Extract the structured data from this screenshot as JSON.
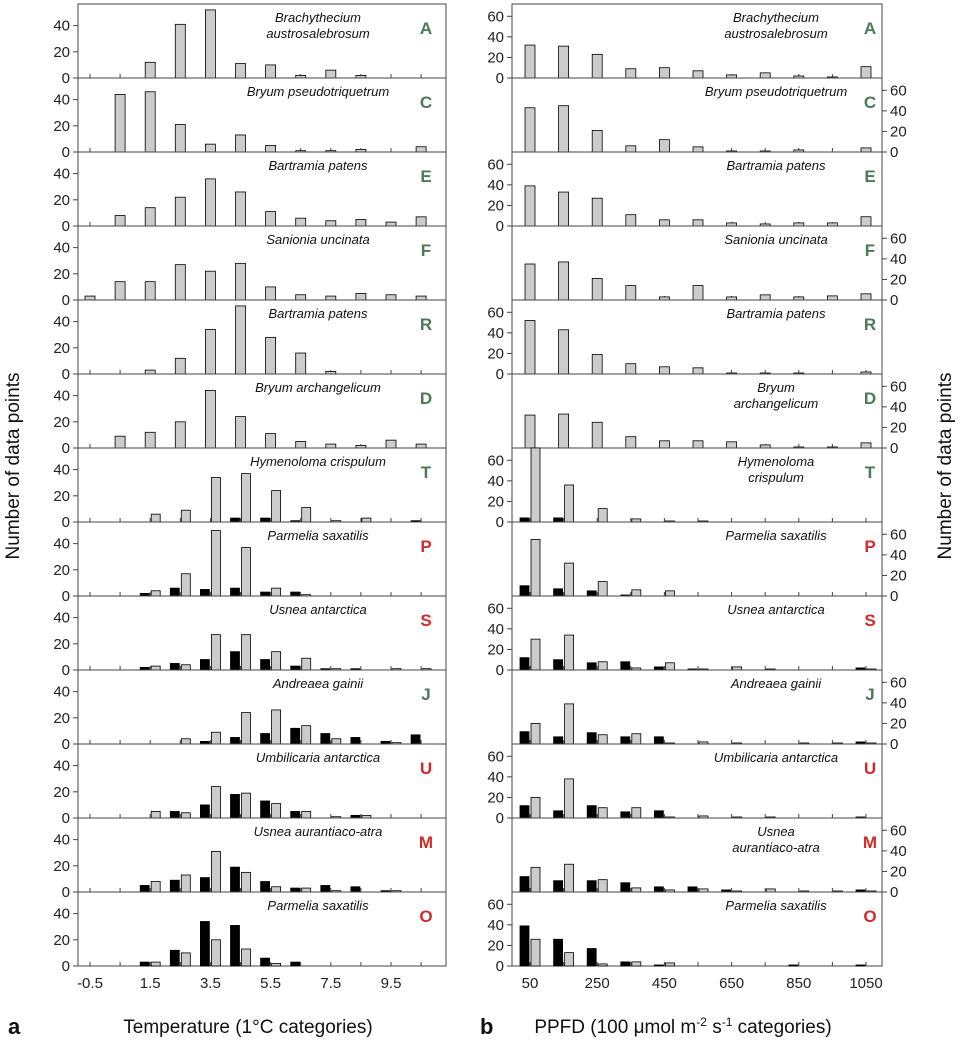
{
  "figure": {
    "label_a": "a",
    "label_b": "b",
    "ylabel_left": "Number of data points",
    "ylabel_right": "Number of data points",
    "xlabel_left": "Temperature (1°C categories)",
    "xlabel_right_parts": [
      "PPFD  (100 ",
      "μ",
      "mol m",
      "-2",
      " s",
      "-1",
      "  categories)"
    ]
  },
  "colors": {
    "letter_green": "#4a7a56",
    "letter_red": "#d22b2b",
    "bar_black": "#000000",
    "bar_gray": "#cccccc"
  },
  "chart_data": [
    {
      "type": "bar",
      "panel": "a",
      "title": "Temperature",
      "xlabel": "Temperature (1°C categories)",
      "ylabel": "Number of data points",
      "categories": [
        "-0.5",
        "0.5",
        "1.5",
        "2.5",
        "3.5",
        "4.5",
        "5.5",
        "6.5",
        "7.5",
        "8.5",
        "9.5",
        "10.5"
      ],
      "xtick_labels": [
        "-0.5",
        "1.5",
        "3.5",
        "5.5",
        "7.5",
        "9.5"
      ],
      "ylim": [
        0,
        55
      ],
      "yticks": [
        0,
        20,
        40
      ],
      "rows": [
        {
          "species": [
            "Brachythecium",
            "austrosalebrosum"
          ],
          "letter": "A",
          "color": "green",
          "black": null,
          "gray": [
            0,
            0,
            12,
            41,
            52,
            11,
            10,
            2,
            6,
            2,
            0,
            0
          ]
        },
        {
          "species": [
            "Bryum pseudotriquetrum"
          ],
          "letter": "C",
          "color": "green",
          "black": null,
          "gray": [
            0,
            44,
            46,
            21,
            6,
            13,
            5,
            1,
            1,
            2,
            0,
            4
          ]
        },
        {
          "species": [
            "Bartramia patens"
          ],
          "letter": "E",
          "color": "green",
          "black": null,
          "gray": [
            0,
            8,
            14,
            22,
            36,
            26,
            11,
            6,
            4,
            5,
            3,
            7
          ]
        },
        {
          "species": [
            "Sanionia uncinata"
          ],
          "letter": "F",
          "color": "green",
          "black": null,
          "gray": [
            3,
            14,
            14,
            27,
            22,
            28,
            10,
            4,
            3,
            5,
            4,
            3
          ]
        },
        {
          "species": [
            "Bartramia patens"
          ],
          "letter": "R",
          "color": "green",
          "black": null,
          "gray": [
            0,
            0,
            3,
            12,
            34,
            52,
            28,
            16,
            2,
            0,
            0,
            0
          ]
        },
        {
          "species": [
            "Bryum archangelicum"
          ],
          "letter": "D",
          "color": "green",
          "black": null,
          "gray": [
            0,
            9,
            12,
            20,
            44,
            24,
            11,
            5,
            3,
            2,
            6,
            3
          ]
        },
        {
          "species": [
            "Hymenoloma crispulum"
          ],
          "letter": "T",
          "color": "green",
          "black": [
            0,
            0,
            0,
            0,
            0,
            3,
            3,
            1,
            0,
            0,
            0,
            1
          ],
          "gray": [
            0,
            0,
            6,
            9,
            34,
            37,
            24,
            11,
            1,
            3,
            0,
            0
          ]
        },
        {
          "species": [
            "Parmelia saxatilis"
          ],
          "letter": "P",
          "color": "red",
          "black": [
            0,
            0,
            2,
            6,
            5,
            6,
            3,
            3,
            0,
            0,
            0,
            0
          ],
          "gray": [
            0,
            0,
            4,
            17,
            50,
            37,
            6,
            1,
            0,
            0,
            0,
            0
          ]
        },
        {
          "species": [
            "Usnea antarctica"
          ],
          "letter": "S",
          "color": "red",
          "black": [
            0,
            0,
            2,
            5,
            8,
            14,
            8,
            3,
            1,
            1,
            0,
            0
          ],
          "gray": [
            0,
            0,
            3,
            4,
            27,
            27,
            14,
            9,
            1,
            0,
            1,
            1
          ]
        },
        {
          "species": [
            "Andreaea gainii"
          ],
          "letter": "J",
          "color": "green",
          "black": [
            0,
            0,
            0,
            0,
            2,
            5,
            8,
            12,
            8,
            5,
            2,
            7
          ],
          "gray": [
            0,
            0,
            0,
            4,
            9,
            24,
            26,
            14,
            4,
            0,
            1,
            0
          ]
        },
        {
          "species": [
            "Umbilicaria antarctica"
          ],
          "letter": "U",
          "color": "red",
          "black": [
            0,
            0,
            0,
            5,
            10,
            18,
            13,
            5,
            0,
            2,
            0,
            0
          ],
          "gray": [
            0,
            0,
            5,
            4,
            24,
            19,
            11,
            5,
            1,
            2,
            0,
            0
          ]
        },
        {
          "species": [
            "Usnea aurantiaco-atra"
          ],
          "letter": "M",
          "color": "red",
          "black": [
            0,
            0,
            5,
            9,
            11,
            19,
            8,
            3,
            5,
            4,
            1,
            0
          ],
          "gray": [
            0,
            0,
            8,
            13,
            31,
            15,
            4,
            3,
            1,
            0,
            1,
            0
          ]
        },
        {
          "species": [
            "Parmelia saxatilis"
          ],
          "letter": "O",
          "color": "red",
          "black": [
            0,
            0,
            3,
            12,
            34,
            31,
            6,
            3,
            0,
            0,
            0,
            0
          ],
          "gray": [
            0,
            0,
            3,
            10,
            20,
            13,
            2,
            0,
            0,
            0,
            0,
            0
          ]
        }
      ]
    },
    {
      "type": "bar",
      "panel": "b",
      "title": "PPFD",
      "xlabel": "PPFD (100 μmol m-2 s-1 categories)",
      "ylabel": "Number of data points",
      "categories": [
        "50",
        "150",
        "250",
        "350",
        "450",
        "550",
        "650",
        "750",
        "850",
        "950",
        "1050"
      ],
      "xtick_labels": [
        "50",
        "250",
        "450",
        "650",
        "850",
        "1050"
      ],
      "ylim": [
        0,
        70
      ],
      "yticks": [
        0,
        20,
        40,
        60
      ],
      "rows": [
        {
          "species": [
            "Brachythecium",
            "austrosalebrosum"
          ],
          "letter": "A",
          "color": "green",
          "black": null,
          "gray": [
            32,
            31,
            23,
            9,
            10,
            7,
            3,
            5,
            2,
            1,
            11
          ],
          "axis": "left"
        },
        {
          "species": [
            "Bryum pseudotriquetrum"
          ],
          "letter": "C",
          "color": "green",
          "black": null,
          "gray": [
            43,
            45,
            21,
            6,
            12,
            5,
            1,
            1,
            2,
            0,
            4
          ],
          "axis": "right"
        },
        {
          "species": [
            "Bartramia patens"
          ],
          "letter": "E",
          "color": "green",
          "black": null,
          "gray": [
            39,
            33,
            27,
            11,
            6,
            6,
            3,
            2,
            3,
            3,
            9
          ],
          "axis": "left"
        },
        {
          "species": [
            "Sanionia uncinata"
          ],
          "letter": "F",
          "color": "green",
          "black": null,
          "gray": [
            35,
            37,
            21,
            14,
            3,
            14,
            3,
            5,
            3,
            4,
            6
          ],
          "axis": "right"
        },
        {
          "species": [
            "Bartramia patens"
          ],
          "letter": "R",
          "color": "green",
          "black": null,
          "gray": [
            52,
            43,
            19,
            10,
            7,
            6,
            1,
            1,
            1,
            0,
            2
          ],
          "axis": "left"
        },
        {
          "species": [
            "Bryum",
            "archangelicum"
          ],
          "letter": "D",
          "color": "green",
          "black": null,
          "gray": [
            32,
            33,
            25,
            11,
            7,
            7,
            6,
            3,
            1,
            1,
            5
          ],
          "axis": "right"
        },
        {
          "species": [
            "Hymenoloma",
            "crispulum"
          ],
          "letter": "T",
          "color": "green",
          "black": [
            4,
            4,
            0,
            0,
            0,
            0,
            0,
            0,
            0,
            0,
            0
          ],
          "gray": [
            72,
            36,
            13,
            3,
            1,
            1,
            0,
            0,
            0,
            0,
            0
          ],
          "axis": "left"
        },
        {
          "species": [
            "Parmelia saxatilis"
          ],
          "letter": "P",
          "color": "red",
          "black": [
            10,
            7,
            5,
            1,
            0,
            0,
            0,
            0,
            0,
            0,
            0
          ],
          "gray": [
            55,
            32,
            14,
            6,
            5,
            0,
            0,
            0,
            0,
            0,
            0
          ],
          "axis": "right"
        },
        {
          "species": [
            "Usnea antarctica"
          ],
          "letter": "S",
          "color": "red",
          "black": [
            12,
            10,
            7,
            8,
            3,
            1,
            0,
            0,
            0,
            0,
            2
          ],
          "gray": [
            30,
            34,
            8,
            2,
            7,
            1,
            3,
            1,
            0,
            0,
            1
          ],
          "axis": "left"
        },
        {
          "species": [
            "Andreaea gainii"
          ],
          "letter": "J",
          "color": "green",
          "black": [
            12,
            7,
            11,
            7,
            7,
            0,
            0,
            0,
            0,
            0,
            2
          ],
          "gray": [
            20,
            39,
            9,
            10,
            1,
            2,
            1,
            0,
            1,
            1,
            1
          ],
          "axis": "right"
        },
        {
          "species": [
            "Umbilicaria antarctica"
          ],
          "letter": "U",
          "color": "red",
          "black": [
            12,
            7,
            12,
            6,
            7,
            0,
            0,
            0,
            0,
            0,
            1
          ],
          "gray": [
            20,
            38,
            10,
            10,
            1,
            2,
            1,
            1,
            0,
            0,
            0
          ],
          "axis": "left"
        },
        {
          "species": [
            "Usnea",
            "aurantiaco-atra"
          ],
          "letter": "M",
          "color": "red",
          "black": [
            15,
            11,
            11,
            9,
            5,
            5,
            2,
            0,
            0,
            0,
            2
          ],
          "gray": [
            24,
            27,
            12,
            4,
            2,
            3,
            1,
            3,
            1,
            1,
            1
          ],
          "axis": "right"
        },
        {
          "species": [
            "Parmelia saxatilis"
          ],
          "letter": "O",
          "color": "red",
          "black": [
            39,
            26,
            17,
            4,
            1,
            0,
            0,
            0,
            1,
            0,
            1
          ],
          "gray": [
            26,
            13,
            2,
            4,
            3,
            0,
            0,
            0,
            0,
            0,
            0
          ],
          "axis": "left"
        }
      ]
    }
  ]
}
